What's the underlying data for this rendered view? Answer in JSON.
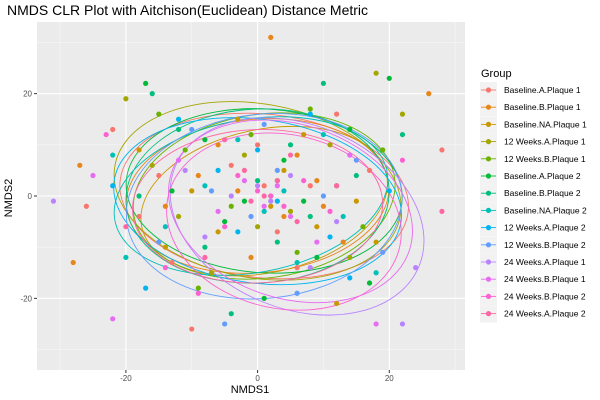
{
  "chart_data": {
    "type": "scatter",
    "title": "NMDS CLR Plot with Aitchison(Euclidean) Distance Metric",
    "xlabel": "NMDS1",
    "ylabel": "NMDS2",
    "xlim": [
      -33.5,
      31.5
    ],
    "ylim": [
      -34,
      34
    ],
    "xticks": [
      -20,
      0,
      20
    ],
    "yticks": [
      -20,
      0,
      20
    ],
    "xtick_labels": [
      "-20",
      "0",
      "20"
    ],
    "ytick_labels": [
      "-20",
      "0",
      "20"
    ],
    "grid": true,
    "legend_position": "right",
    "legend_title": "Group",
    "ellipses": true,
    "series": [
      {
        "name": "Baseline.A.Plaque 1",
        "color": "#F8766D",
        "points": [
          [
            -22,
            13
          ],
          [
            -18,
            -4
          ],
          [
            12,
            16
          ],
          [
            28,
            9
          ],
          [
            -10,
            -26
          ],
          [
            8,
            2
          ],
          [
            -4,
            6
          ],
          [
            3,
            -7
          ],
          [
            1,
            2
          ],
          [
            -13,
            -13
          ],
          [
            17,
            5
          ],
          [
            6,
            -14
          ],
          [
            -26,
            -2
          ],
          [
            -15,
            4
          ],
          [
            0,
            10
          ]
        ],
        "ellipse": {
          "cx": 1,
          "cy": 0,
          "rx": 22,
          "ry": 16,
          "angle": -6
        }
      },
      {
        "name": "Baseline.B.Plaque 1",
        "color": "#E7861B",
        "points": [
          [
            26,
            20
          ],
          [
            2,
            31
          ],
          [
            -28,
            -13
          ],
          [
            -27,
            6
          ],
          [
            -14,
            -2
          ],
          [
            -6,
            10
          ],
          [
            4,
            -4
          ],
          [
            9,
            3
          ],
          [
            -1,
            -12
          ],
          [
            13,
            -9
          ],
          [
            -9,
            4
          ],
          [
            6,
            8
          ],
          [
            -3,
            1
          ],
          [
            10,
            -2
          ]
        ],
        "ellipse": {
          "cx": 0,
          "cy": 0,
          "rx": 20,
          "ry": 15,
          "angle": 5
        }
      },
      {
        "name": "Baseline.NA.Plaque 1",
        "color": "#C99800",
        "points": [
          [
            12,
            -21
          ],
          [
            -18,
            9
          ],
          [
            -6,
            -7
          ],
          [
            7,
            12
          ],
          [
            2,
            -2
          ],
          [
            -10,
            1
          ],
          [
            15,
            -1
          ],
          [
            -3,
            15
          ],
          [
            18,
            -9
          ],
          [
            4,
            5
          ],
          [
            -14,
            -10
          ],
          [
            9,
            -6
          ]
        ],
        "ellipse": {
          "cx": 1,
          "cy": -1,
          "rx": 19,
          "ry": 14,
          "angle": 12
        }
      },
      {
        "name": "12 Weeks.A.Plaque 1",
        "color": "#A3A500",
        "points": [
          [
            18,
            24
          ],
          [
            -20,
            19
          ],
          [
            22,
            16
          ],
          [
            -12,
            -4
          ],
          [
            -2,
            8
          ],
          [
            5,
            -3
          ],
          [
            11,
            10
          ],
          [
            -7,
            -15
          ],
          [
            3,
            3
          ],
          [
            -16,
            6
          ],
          [
            14,
            -12
          ],
          [
            0,
            -6
          ]
        ],
        "ellipse": {
          "cx": 0,
          "cy": 1,
          "rx": 22,
          "ry": 17,
          "angle": -10
        }
      },
      {
        "name": "12 Weeks.B.Plaque 1",
        "color": "#6BB100",
        "points": [
          [
            -15,
            16
          ],
          [
            -9,
            -18
          ],
          [
            16,
            -6
          ],
          [
            -4,
            -2
          ],
          [
            8,
            17
          ],
          [
            2,
            0
          ],
          [
            -11,
            9
          ],
          [
            19,
            9
          ],
          [
            6,
            -11
          ],
          [
            -1,
            12
          ],
          [
            12,
            2
          ]
        ],
        "ellipse": {
          "cx": 1,
          "cy": 0,
          "rx": 20,
          "ry": 16,
          "angle": 8
        }
      },
      {
        "name": "Baseline.A.Plaque 2",
        "color": "#00BA38",
        "points": [
          [
            -17,
            22
          ],
          [
            20,
            23
          ],
          [
            -5,
            -5
          ],
          [
            1,
            -20
          ],
          [
            9,
            -12
          ],
          [
            -13,
            1
          ],
          [
            14,
            13
          ],
          [
            -8,
            11
          ],
          [
            4,
            7
          ],
          [
            17,
            -17
          ],
          [
            -2,
            -1
          ],
          [
            7,
            -1
          ]
        ],
        "ellipse": {
          "cx": 1,
          "cy": 1,
          "rx": 21,
          "ry": 16,
          "angle": -4
        }
      },
      {
        "name": "Baseline.B.Plaque 2",
        "color": "#00BF7D",
        "points": [
          [
            -16,
            20
          ],
          [
            22,
            12
          ],
          [
            10,
            22
          ],
          [
            -8,
            -10
          ],
          [
            3,
            -9
          ],
          [
            -12,
            13
          ],
          [
            15,
            4
          ],
          [
            0,
            3
          ],
          [
            -4,
            -23
          ],
          [
            8,
            -4
          ],
          [
            -18,
            0
          ],
          [
            5,
            10
          ]
        ],
        "ellipse": {
          "cx": 0,
          "cy": 0,
          "rx": 20,
          "ry": 17,
          "angle": 3
        }
      },
      {
        "name": "Baseline.NA.Plaque 2",
        "color": "#00C0B8",
        "points": [
          [
            -22,
            8
          ],
          [
            -14,
            -6
          ],
          [
            13,
            -4
          ],
          [
            -3,
            11
          ],
          [
            6,
            -13
          ],
          [
            1,
            -3
          ],
          [
            -8,
            2
          ],
          [
            18,
            -15
          ],
          [
            10,
            12
          ],
          [
            -20,
            -12
          ],
          [
            4,
            1
          ]
        ],
        "ellipse": {
          "cx": -1,
          "cy": 0,
          "rx": 21,
          "ry": 15,
          "angle": 10
        }
      },
      {
        "name": "12 Weeks.A.Plaque 2",
        "color": "#00B4EF",
        "points": [
          [
            -17,
            -18
          ],
          [
            14,
            -16
          ],
          [
            -3,
            -7
          ],
          [
            8,
            16
          ],
          [
            3,
            -1
          ],
          [
            -12,
            15
          ],
          [
            20,
            1
          ],
          [
            -6,
            5
          ],
          [
            11,
            -8
          ],
          [
            0,
            9
          ],
          [
            -22,
            2
          ]
        ],
        "ellipse": {
          "cx": 0,
          "cy": -1,
          "rx": 22,
          "ry": 16,
          "angle": -8
        }
      },
      {
        "name": "12 Weeks.B.Plaque 2",
        "color": "#619CFF",
        "points": [
          [
            -5,
            -25
          ],
          [
            -10,
            13
          ],
          [
            6,
            -19
          ],
          [
            15,
            7
          ],
          [
            -1,
            -4
          ],
          [
            3,
            5
          ],
          [
            -15,
            -9
          ],
          [
            10,
            0
          ],
          [
            -7,
            1
          ],
          [
            19,
            -11
          ],
          [
            1,
            14
          ]
        ],
        "ellipse": {
          "cx": 1,
          "cy": -2,
          "rx": 21,
          "ry": 18,
          "angle": 6
        }
      },
      {
        "name": "24 Weeks.A.Plaque 1",
        "color": "#B983FF",
        "points": [
          [
            -31,
            -1
          ],
          [
            22,
            -25
          ],
          [
            24,
            -14
          ],
          [
            -8,
            -8
          ],
          [
            5,
            4
          ],
          [
            2,
            -1
          ],
          [
            -4,
            0
          ],
          [
            12,
            -5
          ],
          [
            0,
            2
          ],
          [
            8,
            -14
          ],
          [
            -11,
            5
          ]
        ],
        "ellipse": {
          "cx": 6,
          "cy": -4,
          "rx": 20,
          "ry": 18,
          "angle": -22
        }
      },
      {
        "name": "24 Weeks.B.Plaque 1",
        "color": "#E76BF3",
        "points": [
          [
            -25,
            4
          ],
          [
            -22,
            -24
          ],
          [
            18,
            -25
          ],
          [
            -6,
            -3
          ],
          [
            3,
            2
          ],
          [
            1,
            -2
          ],
          [
            -2,
            3
          ],
          [
            9,
            -9
          ],
          [
            5,
            -4
          ],
          [
            -12,
            7
          ],
          [
            14,
            8
          ]
        ],
        "ellipse": {
          "cx": 5,
          "cy": -3,
          "rx": 19,
          "ry": 17,
          "angle": -18
        }
      },
      {
        "name": "24 Weeks.B.Plaque 2",
        "color": "#FD61D1",
        "points": [
          [
            -23,
            12
          ],
          [
            22,
            7
          ],
          [
            -9,
            -19
          ],
          [
            0,
            1
          ],
          [
            4,
            -2
          ],
          [
            -3,
            4
          ],
          [
            2,
            0
          ],
          [
            7,
            3
          ],
          [
            -5,
            -6
          ],
          [
            11,
            -3
          ],
          [
            -14,
            -14
          ]
        ],
        "ellipse": {
          "cx": 4,
          "cy": -5,
          "rx": 18,
          "ry": 17,
          "angle": -12
        }
      },
      {
        "name": "24 Weeks.A.Plaque 2",
        "color": "#FF67A4",
        "points": [
          [
            28,
            -3
          ],
          [
            -20,
            -6
          ],
          [
            -5,
            11
          ],
          [
            1,
            0
          ],
          [
            3,
            3
          ],
          [
            -1,
            -1
          ],
          [
            6,
            -5
          ],
          [
            -8,
            -12
          ],
          [
            12,
            2
          ],
          [
            5,
            8
          ],
          [
            -2,
            5
          ]
        ],
        "ellipse": {
          "cx": 0,
          "cy": -2,
          "rx": 19,
          "ry": 15,
          "angle": 2
        }
      }
    ]
  }
}
